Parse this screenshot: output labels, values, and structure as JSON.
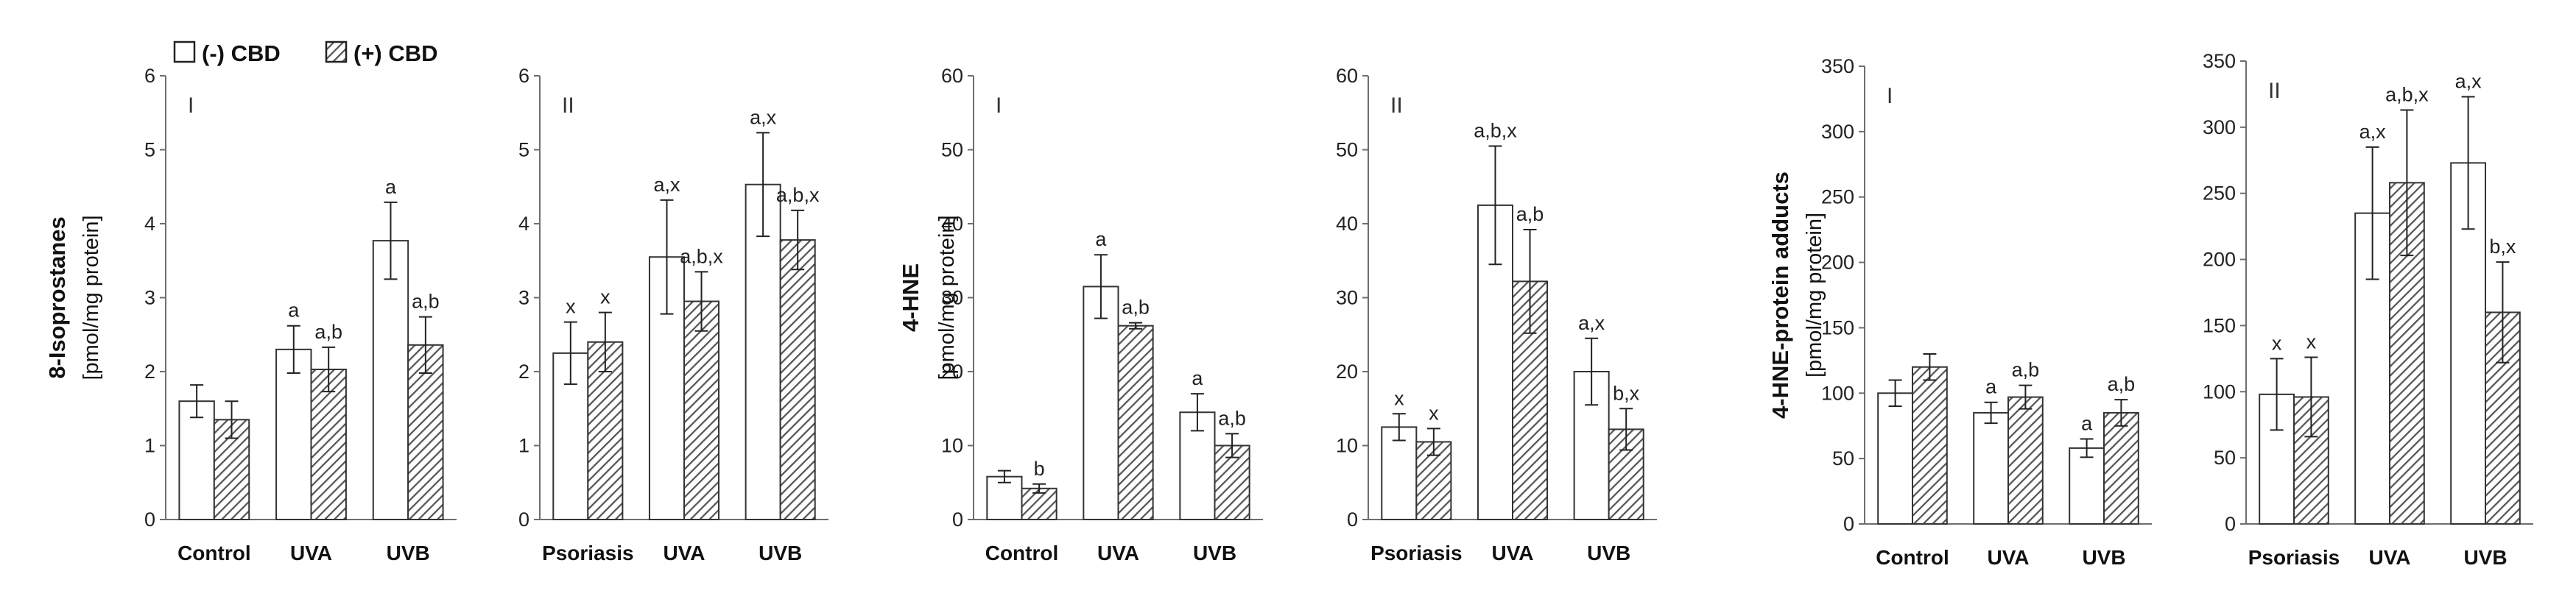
{
  "legend": {
    "minus_label": "(-) CBD",
    "plus_label": "(+) CBD"
  },
  "colors": {
    "minus_fill": "#ffffff",
    "hatch": "#555555",
    "axis": "#6e6e6e",
    "bar_stroke": "#333333"
  },
  "chart_data": [
    {
      "type": "bar",
      "title": "8-Isoprostanes I",
      "panel_label": "I",
      "ylabel": "8-Isoprostanes",
      "ylabel2": "[pmol/mg protein]",
      "ylim": [
        0,
        6
      ],
      "yticks": [
        0,
        1,
        2,
        3,
        4,
        5,
        6
      ],
      "categories": [
        "Control",
        "UVA",
        "UVB"
      ],
      "series": [
        {
          "name": "(-) CBD",
          "values": [
            1.6,
            2.3,
            3.77
          ],
          "errors": [
            0.22,
            0.32,
            0.52
          ],
          "labels": [
            "",
            "a",
            "a"
          ]
        },
        {
          "name": "(+) CBD",
          "values": [
            1.35,
            2.03,
            2.36
          ],
          "errors": [
            0.25,
            0.3,
            0.38
          ],
          "labels": [
            "",
            "a,b",
            "a,b"
          ]
        }
      ]
    },
    {
      "type": "bar",
      "title": "8-Isoprostanes II",
      "panel_label": "II",
      "ylabel": "",
      "ylabel2": "",
      "ylim": [
        0,
        6
      ],
      "yticks": [
        0,
        1,
        2,
        3,
        4,
        5,
        6
      ],
      "categories": [
        "Psoriasis",
        "UVA",
        "UVB"
      ],
      "series": [
        {
          "name": "(-) CBD",
          "values": [
            2.25,
            3.55,
            4.53
          ],
          "errors": [
            0.42,
            0.77,
            0.7
          ],
          "labels": [
            "x",
            "a,x",
            "a,x"
          ]
        },
        {
          "name": "(+) CBD",
          "values": [
            2.4,
            2.95,
            3.78
          ],
          "errors": [
            0.4,
            0.4,
            0.4
          ],
          "labels": [
            "x",
            "a,b,x",
            "a,b,x"
          ]
        }
      ]
    },
    {
      "type": "bar",
      "title": "4-HNE I",
      "panel_label": "I",
      "ylabel": "4-HNE",
      "ylabel2": "[pmol/mg protein]",
      "ylim": [
        0,
        60
      ],
      "yticks": [
        0,
        10,
        20,
        30,
        40,
        50,
        60
      ],
      "categories": [
        "Control",
        "UVA",
        "UVB"
      ],
      "series": [
        {
          "name": "(-) CBD",
          "values": [
            5.8,
            31.5,
            14.5
          ],
          "errors": [
            0.8,
            4.3,
            2.5
          ],
          "labels": [
            "",
            "a",
            "a"
          ]
        },
        {
          "name": "(+) CBD",
          "values": [
            4.2,
            26.2,
            10.0
          ],
          "errors": [
            0.6,
            0.4,
            1.6
          ],
          "labels": [
            "b",
            "a,b",
            "a,b"
          ]
        }
      ]
    },
    {
      "type": "bar",
      "title": "4-HNE II",
      "panel_label": "II",
      "ylabel": "",
      "ylabel2": "",
      "ylim": [
        0,
        60
      ],
      "yticks": [
        0,
        10,
        20,
        30,
        40,
        50,
        60
      ],
      "categories": [
        "Psoriasis",
        "UVA",
        "UVB"
      ],
      "series": [
        {
          "name": "(-) CBD",
          "values": [
            12.5,
            42.5,
            20.0
          ],
          "errors": [
            1.8,
            8.0,
            4.5
          ],
          "labels": [
            "x",
            "a,b,x",
            "a,x"
          ]
        },
        {
          "name": "(+) CBD",
          "values": [
            10.5,
            32.2,
            12.2
          ],
          "errors": [
            1.8,
            7.0,
            2.8
          ],
          "labels": [
            "x",
            "a,b",
            "b,x"
          ]
        }
      ]
    },
    {
      "type": "bar",
      "title": "4-HNE-protein adducts I",
      "panel_label": "I",
      "ylabel": "4-HNE-protein adducts",
      "ylabel2": "[pmol/mg protein]",
      "ylim": [
        0,
        350
      ],
      "yticks": [
        0,
        50,
        100,
        150,
        200,
        250,
        300,
        350
      ],
      "categories": [
        "Control",
        "UVA",
        "UVB"
      ],
      "series": [
        {
          "name": "(-) CBD",
          "values": [
            100,
            85,
            58
          ],
          "errors": [
            10,
            8,
            7
          ],
          "labels": [
            "",
            "a",
            "a"
          ]
        },
        {
          "name": "(+) CBD",
          "values": [
            120,
            97,
            85
          ],
          "errors": [
            10,
            9,
            10
          ],
          "labels": [
            "",
            "a,b",
            "a,b"
          ]
        }
      ]
    },
    {
      "type": "bar",
      "title": "4-HNE-protein adducts II",
      "panel_label": "II",
      "ylabel": "",
      "ylabel2": "",
      "ylim": [
        0,
        350
      ],
      "yticks": [
        0,
        50,
        100,
        150,
        200,
        250,
        300,
        350
      ],
      "categories": [
        "Psoriasis",
        "UVA",
        "UVB"
      ],
      "series": [
        {
          "name": "(-) CBD",
          "values": [
            98,
            235,
            273
          ],
          "errors": [
            27,
            50,
            50
          ],
          "labels": [
            "x",
            "a,x",
            "a,x"
          ]
        },
        {
          "name": "(+) CBD",
          "values": [
            96,
            258,
            160
          ],
          "errors": [
            30,
            55,
            38
          ],
          "labels": [
            "x",
            "a,b,x",
            "b,x"
          ]
        }
      ]
    }
  ]
}
